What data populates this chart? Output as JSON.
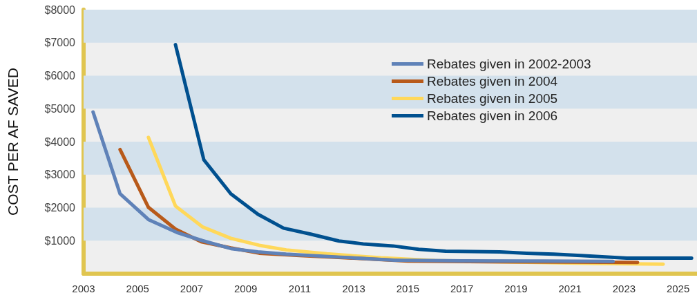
{
  "chart_data": {
    "type": "line",
    "ylabel": "COST PER AF SAVED",
    "xlim": [
      2003,
      2025.7
    ],
    "xticks": [
      2003,
      2005,
      2007,
      2009,
      2011,
      2013,
      2015,
      2017,
      2019,
      2021,
      2023,
      2025
    ],
    "ylim": [
      0,
      8000
    ],
    "yticks": [
      {
        "value": 1000,
        "label": "$1000"
      },
      {
        "value": 2000,
        "label": "$2000"
      },
      {
        "value": 3000,
        "label": "$3000"
      },
      {
        "value": 4000,
        "label": "$4000"
      },
      {
        "value": 5000,
        "label": "$5000"
      },
      {
        "value": 6000,
        "label": "$6000"
      },
      {
        "value": 7000,
        "label": "$7000"
      },
      {
        "value": 8000,
        "label": "$8000"
      }
    ],
    "bands": [
      {
        "axis": "y",
        "from": 1000,
        "to": 2000,
        "color": "#d3e1ec"
      },
      {
        "axis": "y",
        "from": 3000,
        "to": 4000,
        "color": "#d3e1ec"
      },
      {
        "axis": "y",
        "from": 5000,
        "to": 6000,
        "color": "#d3e1ec"
      },
      {
        "axis": "y",
        "from": 7000,
        "to": 8000,
        "color": "#d3e1ec"
      }
    ],
    "legend": "top right",
    "marker": "none",
    "line_style": "solid",
    "series": [
      {
        "name": "Rebates given in 2002-2003",
        "color": "#5f82b8",
        "x": [
          2003.35,
          2004.35,
          2005.4,
          2006.45,
          2007.4,
          2008.45,
          2009.45,
          2010.5,
          2012.5,
          2014.5,
          2017,
          2020,
          2022.6
        ],
        "values": [
          4900,
          2420,
          1640,
          1250,
          1000,
          760,
          660,
          590,
          500,
          410,
          390,
          380,
          370
        ]
      },
      {
        "name": "Rebates given in 2004",
        "color": "#b85a1a",
        "x": [
          2004.35,
          2005.4,
          2006.4,
          2007.35,
          2008.45,
          2009.5,
          2011,
          2013,
          2015,
          2018,
          2021,
          2023.5
        ],
        "values": [
          3760,
          2010,
          1350,
          970,
          780,
          620,
          550,
          470,
          380,
          360,
          350,
          340
        ]
      },
      {
        "name": "Rebates given in 2005",
        "color": "#ffd85a",
        "x": [
          2005.4,
          2006.4,
          2007.4,
          2008.45,
          2009.5,
          2010.5,
          2012,
          2014,
          2016,
          2019,
          2022,
          2024.45
        ],
        "values": [
          4130,
          2050,
          1420,
          1070,
          860,
          720,
          600,
          480,
          400,
          350,
          310,
          290
        ]
      },
      {
        "name": "Rebates given in 2006",
        "color": "#00508f",
        "x": [
          2006.4,
          2007.45,
          2008.45,
          2009.45,
          2010.4,
          2011.4,
          2012.45,
          2013.35,
          2014.45,
          2015.4,
          2016.4,
          2018.4,
          2019.4,
          2020.4,
          2021.4,
          2023.1,
          2025.5
        ],
        "values": [
          6940,
          3450,
          2420,
          1800,
          1380,
          1200,
          990,
          900,
          840,
          740,
          680,
          660,
          620,
          590,
          550,
          470,
          470
        ]
      }
    ]
  }
}
